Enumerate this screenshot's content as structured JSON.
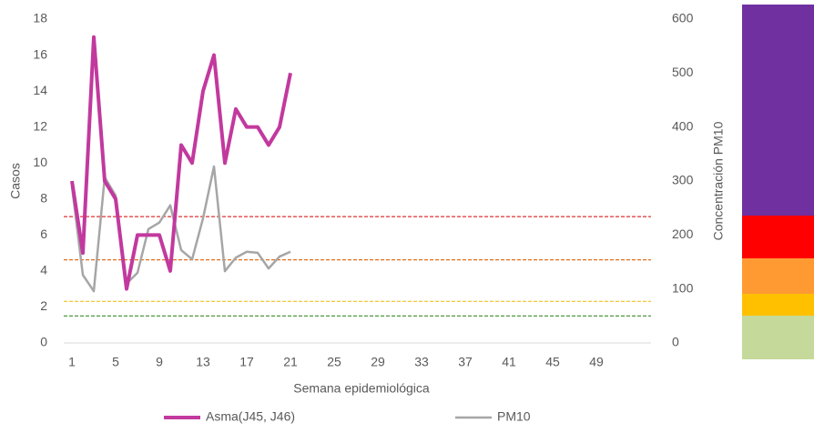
{
  "chart_data": {
    "type": "line",
    "x_label": "Semana epidemiológica",
    "y_label": "Casos",
    "y2_label": "Concentración PM10",
    "x": [
      1,
      2,
      3,
      4,
      5,
      6,
      7,
      8,
      9,
      10,
      11,
      12,
      13,
      14,
      15,
      16,
      17,
      18,
      19,
      20,
      21
    ],
    "series": [
      {
        "name": "Asma(J45, J46)",
        "color": "#c2399e",
        "width": 4,
        "axis": "y",
        "values": [
          9,
          5,
          17,
          9,
          8,
          3,
          6,
          6,
          6,
          4,
          11,
          10,
          14,
          16,
          10,
          13,
          12,
          12,
          11,
          12,
          15
        ]
      },
      {
        "name": "PM10",
        "color": "#a6a6a6",
        "width": 2.5,
        "axis": "y2",
        "values": [
          290,
          126,
          96,
          307,
          273,
          110,
          130,
          211,
          223,
          255,
          172,
          155,
          231,
          327,
          133,
          158,
          169,
          167,
          138,
          160,
          169
        ]
      }
    ],
    "reference_lines": [
      {
        "value": 234,
        "color": "#e03030"
      },
      {
        "value": 154,
        "color": "#e07020"
      },
      {
        "value": 77,
        "color": "#f0c020"
      },
      {
        "value": 50,
        "color": "#3a8a2a"
      }
    ],
    "xlim": [
      0.25,
      54
    ],
    "xticks": [
      1,
      5,
      9,
      13,
      17,
      21,
      25,
      29,
      33,
      37,
      41,
      45,
      49
    ],
    "ylim": [
      0,
      18
    ],
    "yticks": [
      0,
      2,
      4,
      6,
      8,
      10,
      12,
      14,
      16,
      18
    ],
    "y2lim": [
      0,
      600
    ],
    "y2ticks": [
      0,
      100,
      200,
      300,
      400,
      500,
      600
    ],
    "legend": "bottom"
  }
}
